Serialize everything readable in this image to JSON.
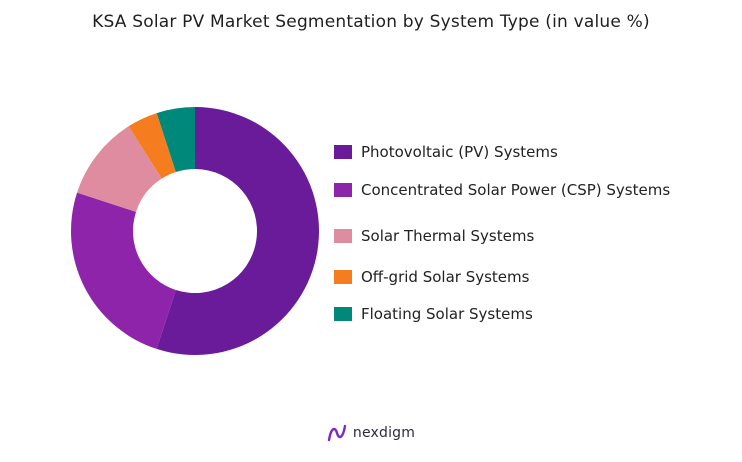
{
  "chart_data": {
    "type": "pie",
    "title": "KSA Solar PV Market Segmentation by System Type (in value %)",
    "donut": true,
    "legend_position": "right",
    "categories": [
      "Photovoltaic (PV) Systems",
      "Concentrated Solar Power (CSP) Systems",
      "Solar Thermal Systems",
      "Off-grid Solar Systems",
      "Floating Solar Systems"
    ],
    "values": [
      55,
      25,
      11,
      4,
      5
    ],
    "colors": [
      "#6a1b9a",
      "#8e24aa",
      "#e08ca0",
      "#f57c1f",
      "#00897b"
    ]
  },
  "brand": {
    "name": "nexdigm",
    "icon": "nexdigm-logo-icon"
  }
}
